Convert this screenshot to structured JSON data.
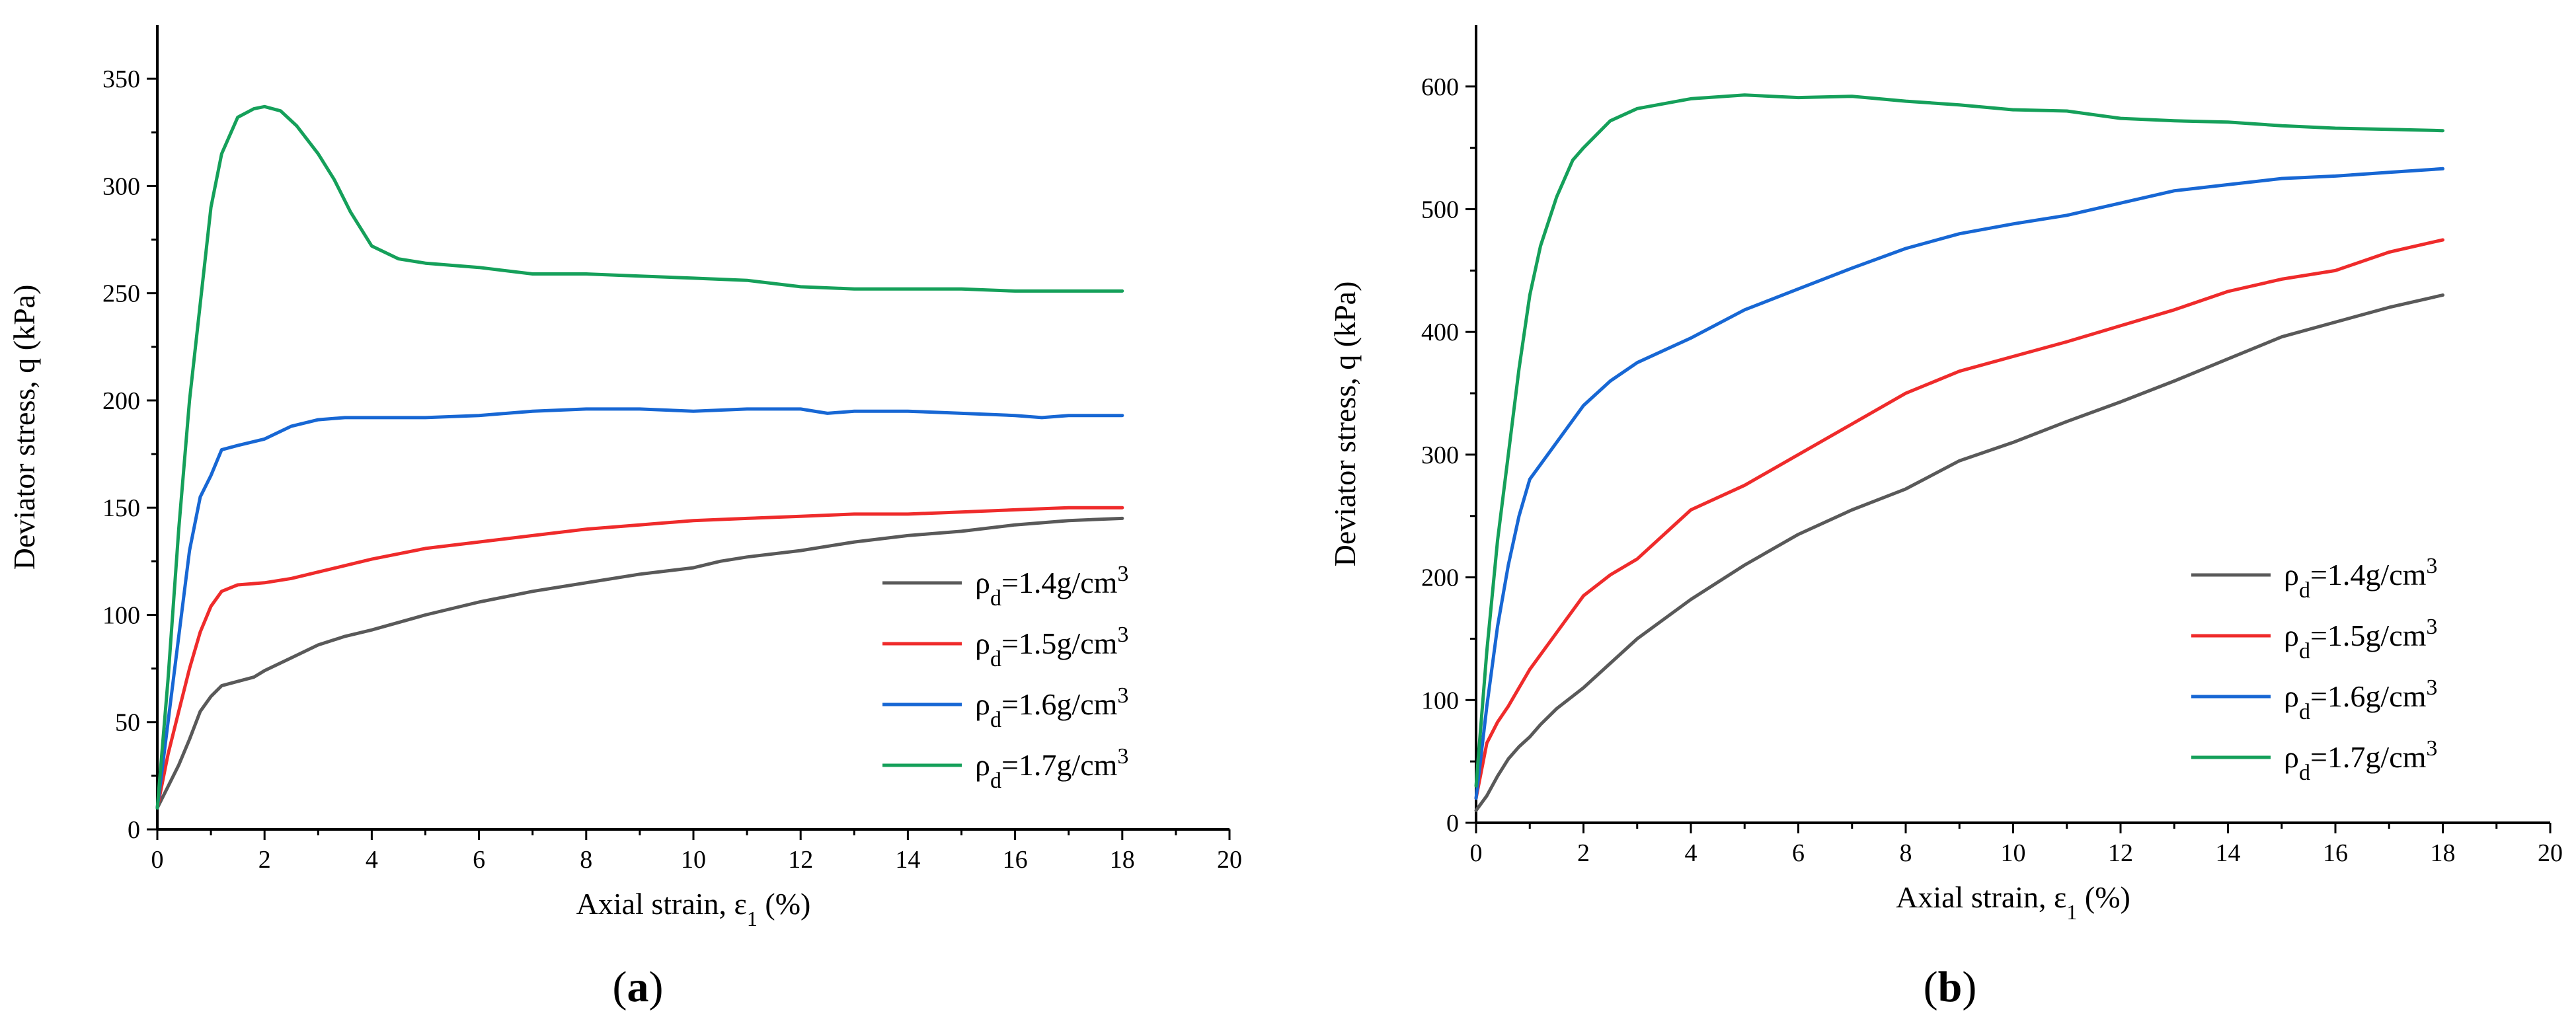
{
  "figure": {
    "panels": [
      "(a)",
      "(b)"
    ]
  },
  "colors": {
    "s14": "#595959",
    "s15": "#ef2b2b",
    "s16": "#1767d4",
    "s17": "#15a05a"
  },
  "chart_data": [
    {
      "type": "line",
      "panel_label": "(a)",
      "title": "",
      "xlabel": "Axial strain, ε1 (%)",
      "ylabel": "Deviator stress, q (kPa)",
      "xlim": [
        0,
        20
      ],
      "ylim": [
        0,
        375
      ],
      "xticks": [
        0,
        2,
        4,
        6,
        8,
        10,
        12,
        14,
        16,
        18,
        20
      ],
      "yticks": [
        0,
        50,
        100,
        150,
        200,
        250,
        300,
        350
      ],
      "legend_position": "bottom-right",
      "series": [
        {
          "name": "ρd=1.4g/cm3",
          "legend": {
            "sym": "ρ",
            "sub": "d",
            "mid": "=1.4g/cm",
            "sup": "3"
          },
          "color": "#595959",
          "points": [
            [
              0,
              10
            ],
            [
              0.2,
              20
            ],
            [
              0.4,
              30
            ],
            [
              0.6,
              42
            ],
            [
              0.8,
              55
            ],
            [
              1.0,
              62
            ],
            [
              1.2,
              67
            ],
            [
              1.5,
              69
            ],
            [
              1.8,
              71
            ],
            [
              2.0,
              74
            ],
            [
              2.5,
              80
            ],
            [
              3.0,
              86
            ],
            [
              3.5,
              90
            ],
            [
              4.0,
              93
            ],
            [
              5,
              100
            ],
            [
              6,
              106
            ],
            [
              7,
              111
            ],
            [
              8,
              115
            ],
            [
              9,
              119
            ],
            [
              10,
              122
            ],
            [
              10.5,
              125
            ],
            [
              11,
              127
            ],
            [
              12,
              130
            ],
            [
              13,
              134
            ],
            [
              14,
              137
            ],
            [
              15,
              139
            ],
            [
              16,
              142
            ],
            [
              17,
              144
            ],
            [
              18,
              145
            ]
          ]
        },
        {
          "name": "ρd=1.5g/cm3",
          "legend": {
            "sym": "ρ",
            "sub": "d",
            "mid": "=1.5g/cm",
            "sup": "3"
          },
          "color": "#ef2b2b",
          "points": [
            [
              0,
              10
            ],
            [
              0.2,
              35
            ],
            [
              0.4,
              55
            ],
            [
              0.6,
              75
            ],
            [
              0.8,
              92
            ],
            [
              1.0,
              104
            ],
            [
              1.2,
              111
            ],
            [
              1.5,
              114
            ],
            [
              2.0,
              115
            ],
            [
              2.5,
              117
            ],
            [
              3.0,
              120
            ],
            [
              4,
              126
            ],
            [
              5,
              131
            ],
            [
              6,
              134
            ],
            [
              7,
              137
            ],
            [
              8,
              140
            ],
            [
              9,
              142
            ],
            [
              10,
              144
            ],
            [
              11,
              145
            ],
            [
              12,
              146
            ],
            [
              13,
              147
            ],
            [
              14,
              147
            ],
            [
              15,
              148
            ],
            [
              16,
              149
            ],
            [
              17,
              150
            ],
            [
              18,
              150
            ]
          ]
        },
        {
          "name": "ρd=1.6g/cm3",
          "legend": {
            "sym": "ρ",
            "sub": "d",
            "mid": "=1.6g/cm",
            "sup": "3"
          },
          "color": "#1767d4",
          "points": [
            [
              0,
              10
            ],
            [
              0.2,
              50
            ],
            [
              0.4,
              90
            ],
            [
              0.6,
              130
            ],
            [
              0.8,
              155
            ],
            [
              1.0,
              165
            ],
            [
              1.2,
              177
            ],
            [
              1.5,
              179
            ],
            [
              2.0,
              182
            ],
            [
              2.5,
              188
            ],
            [
              3.0,
              191
            ],
            [
              3.5,
              192
            ],
            [
              4,
              192
            ],
            [
              5,
              192
            ],
            [
              6,
              193
            ],
            [
              7,
              195
            ],
            [
              8,
              196
            ],
            [
              9,
              196
            ],
            [
              10,
              195
            ],
            [
              11,
              196
            ],
            [
              12,
              196
            ],
            [
              12.5,
              194
            ],
            [
              13,
              195
            ],
            [
              14,
              195
            ],
            [
              15,
              194
            ],
            [
              16,
              193
            ],
            [
              16.5,
              192
            ],
            [
              17,
              193
            ],
            [
              18,
              193
            ]
          ]
        },
        {
          "name": "ρd=1.7g/cm3",
          "legend": {
            "sym": "ρ",
            "sub": "d",
            "mid": "=1.7g/cm",
            "sup": "3"
          },
          "color": "#15a05a",
          "points": [
            [
              0,
              10
            ],
            [
              0.2,
              70
            ],
            [
              0.4,
              140
            ],
            [
              0.6,
              200
            ],
            [
              0.8,
              245
            ],
            [
              1.0,
              290
            ],
            [
              1.2,
              315
            ],
            [
              1.5,
              332
            ],
            [
              1.8,
              336
            ],
            [
              2.0,
              337
            ],
            [
              2.3,
              335
            ],
            [
              2.6,
              328
            ],
            [
              3.0,
              315
            ],
            [
              3.3,
              303
            ],
            [
              3.6,
              288
            ],
            [
              4.0,
              272
            ],
            [
              4.5,
              266
            ],
            [
              5,
              264
            ],
            [
              6,
              262
            ],
            [
              7,
              259
            ],
            [
              8,
              259
            ],
            [
              9,
              258
            ],
            [
              10,
              257
            ],
            [
              11,
              256
            ],
            [
              12,
              253
            ],
            [
              13,
              252
            ],
            [
              14,
              252
            ],
            [
              15,
              252
            ],
            [
              16,
              251
            ],
            [
              17,
              251
            ],
            [
              18,
              251
            ]
          ]
        }
      ]
    },
    {
      "type": "line",
      "panel_label": "(b)",
      "title": "",
      "xlabel": "Axial strain, ε1 (%)",
      "ylabel": "Deviator stress, q (kPa)",
      "xlim": [
        0,
        20
      ],
      "ylim": [
        0,
        650
      ],
      "xticks": [
        0,
        2,
        4,
        6,
        8,
        10,
        12,
        14,
        16,
        18,
        20
      ],
      "yticks": [
        0,
        100,
        200,
        300,
        400,
        500,
        600
      ],
      "legend_position": "bottom-right",
      "series": [
        {
          "name": "ρd=1.4g/cm3",
          "legend": {
            "sym": "ρ",
            "sub": "d",
            "mid": "=1.4g/cm",
            "sup": "3"
          },
          "color": "#595959",
          "points": [
            [
              0,
              10
            ],
            [
              0.2,
              22
            ],
            [
              0.4,
              38
            ],
            [
              0.6,
              52
            ],
            [
              0.8,
              62
            ],
            [
              1.0,
              70
            ],
            [
              1.2,
              80
            ],
            [
              1.5,
              93
            ],
            [
              2.0,
              110
            ],
            [
              2.5,
              130
            ],
            [
              3,
              150
            ],
            [
              4,
              182
            ],
            [
              5,
              210
            ],
            [
              6,
              235
            ],
            [
              7,
              255
            ],
            [
              8,
              272
            ],
            [
              9,
              295
            ],
            [
              10,
              310
            ],
            [
              11,
              327
            ],
            [
              12,
              343
            ],
            [
              13,
              360
            ],
            [
              14,
              378
            ],
            [
              15,
              396
            ],
            [
              16,
              408
            ],
            [
              17,
              420
            ],
            [
              18,
              430
            ]
          ]
        },
        {
          "name": "ρd=1.5g/cm3",
          "legend": {
            "sym": "ρ",
            "sub": "d",
            "mid": "=1.5g/cm",
            "sup": "3"
          },
          "color": "#ef2b2b",
          "points": [
            [
              0,
              20
            ],
            [
              0.2,
              65
            ],
            [
              0.4,
              82
            ],
            [
              0.6,
              95
            ],
            [
              0.8,
              110
            ],
            [
              1.0,
              125
            ],
            [
              1.5,
              155
            ],
            [
              2.0,
              185
            ],
            [
              2.5,
              202
            ],
            [
              3,
              215
            ],
            [
              4,
              255
            ],
            [
              5,
              275
            ],
            [
              6,
              300
            ],
            [
              7,
              325
            ],
            [
              8,
              350
            ],
            [
              9,
              368
            ],
            [
              10,
              380
            ],
            [
              11,
              392
            ],
            [
              12,
              405
            ],
            [
              13,
              418
            ],
            [
              14,
              433
            ],
            [
              15,
              443
            ],
            [
              16,
              450
            ],
            [
              17,
              465
            ],
            [
              18,
              475
            ]
          ]
        },
        {
          "name": "ρd=1.6g/cm3",
          "legend": {
            "sym": "ρ",
            "sub": "d",
            "mid": "=1.6g/cm",
            "sup": "3"
          },
          "color": "#1767d4",
          "points": [
            [
              0,
              20
            ],
            [
              0.2,
              95
            ],
            [
              0.4,
              160
            ],
            [
              0.6,
              210
            ],
            [
              0.8,
              250
            ],
            [
              1.0,
              280
            ],
            [
              1.5,
              310
            ],
            [
              2.0,
              340
            ],
            [
              2.5,
              360
            ],
            [
              3,
              375
            ],
            [
              4,
              395
            ],
            [
              5,
              418
            ],
            [
              6,
              435
            ],
            [
              7,
              452
            ],
            [
              8,
              468
            ],
            [
              9,
              480
            ],
            [
              10,
              488
            ],
            [
              11,
              495
            ],
            [
              12,
              505
            ],
            [
              13,
              515
            ],
            [
              14,
              520
            ],
            [
              15,
              525
            ],
            [
              16,
              527
            ],
            [
              17,
              530
            ],
            [
              18,
              533
            ]
          ]
        },
        {
          "name": "ρd=1.7g/cm3",
          "legend": {
            "sym": "ρ",
            "sub": "d",
            "mid": "=1.7g/cm",
            "sup": "3"
          },
          "color": "#15a05a",
          "points": [
            [
              0,
              30
            ],
            [
              0.2,
              140
            ],
            [
              0.4,
              230
            ],
            [
              0.6,
              300
            ],
            [
              0.8,
              370
            ],
            [
              1.0,
              430
            ],
            [
              1.2,
              470
            ],
            [
              1.5,
              510
            ],
            [
              1.8,
              540
            ],
            [
              2.0,
              550
            ],
            [
              2.5,
              572
            ],
            [
              3,
              582
            ],
            [
              4,
              590
            ],
            [
              5,
              593
            ],
            [
              6,
              591
            ],
            [
              7,
              592
            ],
            [
              8,
              588
            ],
            [
              9,
              585
            ],
            [
              10,
              581
            ],
            [
              11,
              580
            ],
            [
              12,
              574
            ],
            [
              13,
              572
            ],
            [
              14,
              571
            ],
            [
              15,
              568
            ],
            [
              16,
              566
            ],
            [
              17,
              565
            ],
            [
              18,
              564
            ]
          ]
        }
      ]
    }
  ]
}
